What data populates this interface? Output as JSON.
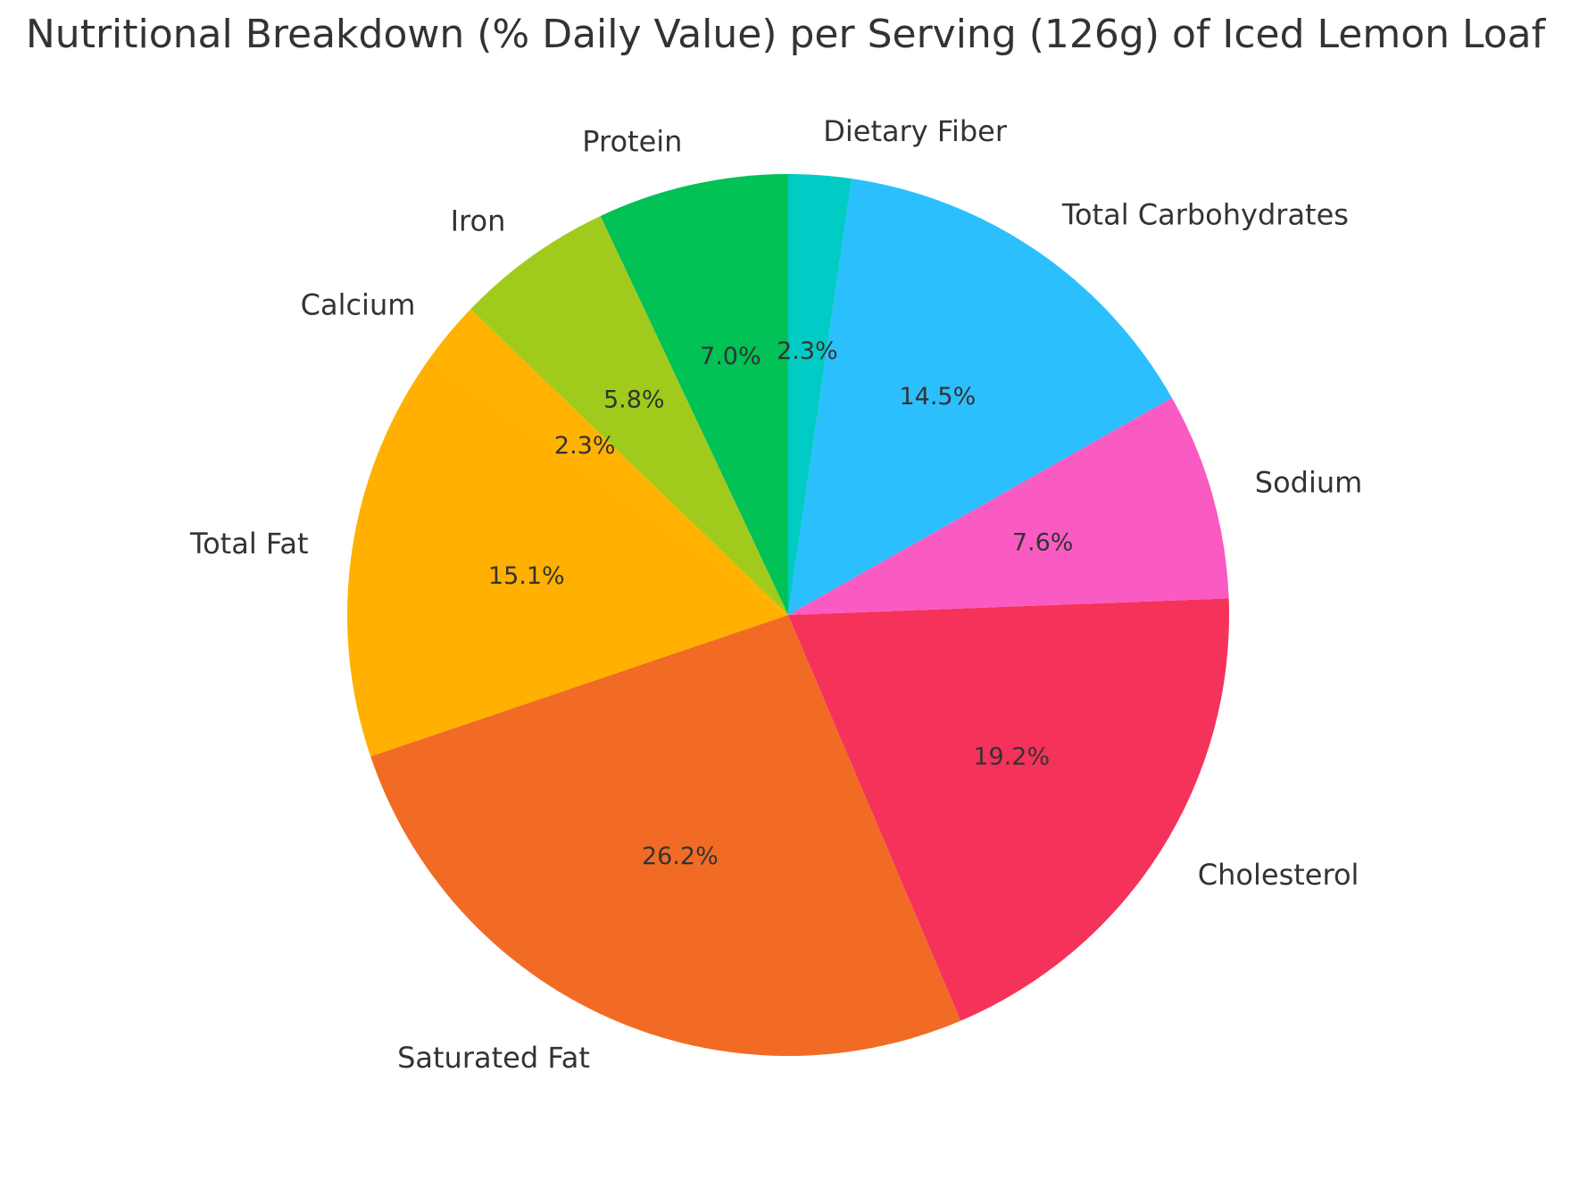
{
  "chart_data": {
    "type": "pie",
    "title": "Nutritional Breakdown (% Daily Value) per Serving (126g) of Iced Lemon Loaf",
    "start_angle_deg": 90,
    "direction": "counterclockwise",
    "slices": [
      {
        "label": "Protein",
        "value": 7.0,
        "pct_label": "7.0%",
        "color": "#02C155"
      },
      {
        "label": "Iron",
        "value": 5.8,
        "pct_label": "5.8%",
        "color": "#A0CB1C"
      },
      {
        "label": "Calcium",
        "value": 2.3,
        "pct_label": "2.3%",
        "color": "#FFB300"
      },
      {
        "label": "Total Fat",
        "value": 15.1,
        "pct_label": "15.1%",
        "color": "#FFB000"
      },
      {
        "label": "Saturated Fat",
        "value": 26.2,
        "pct_label": "26.2%",
        "color": "#F26B24"
      },
      {
        "label": "Cholesterol",
        "value": 19.2,
        "pct_label": "19.2%",
        "color": "#F5325A"
      },
      {
        "label": "Sodium",
        "value": 7.6,
        "pct_label": "7.6%",
        "color": "#F95BC2"
      },
      {
        "label": "Total Carbohydrates",
        "value": 14.5,
        "pct_label": "14.5%",
        "color": "#2CBFFE"
      },
      {
        "label": "Dietary Fiber",
        "value": 2.3,
        "pct_label": "2.3%",
        "color": "#00CBC4"
      }
    ]
  }
}
